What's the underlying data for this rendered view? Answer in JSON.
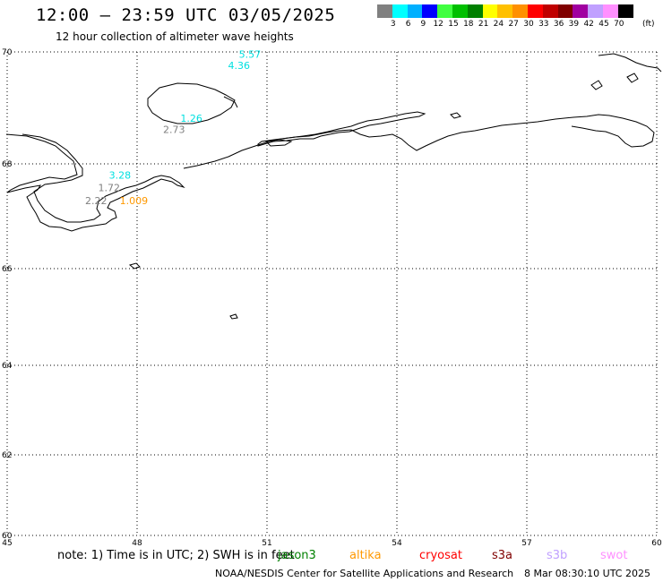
{
  "header": {
    "title": "12:00 — 23:59 UTC 03/05/2025",
    "subtitle": "12 hour collection of altimeter wave heights"
  },
  "legend": {
    "colors": [
      "#808080",
      "#00ffff",
      "#00b0ff",
      "#0000ff",
      "#40ff40",
      "#00c000",
      "#008000",
      "#ffff00",
      "#ffc000",
      "#ff9000",
      "#ff0000",
      "#c00000",
      "#800000",
      "#a000a0",
      "#c0a0ff",
      "#ff90ff",
      "#000000"
    ],
    "labels": [
      "3",
      "6",
      "9",
      "12",
      "15",
      "18",
      "21",
      "24",
      "27",
      "30",
      "33",
      "36",
      "39",
      "42",
      "45",
      "70"
    ],
    "unit": "(ft)"
  },
  "map": {
    "lon_ticks": [
      "45",
      "48",
      "51",
      "54",
      "57",
      "60"
    ],
    "lat_ticks": [
      "70",
      "68",
      "66",
      "64",
      "62",
      "60"
    ],
    "wave_labels": [
      {
        "text": "5.57",
        "color": "#00e0e0",
        "lon": 50.35,
        "lat": 69.9
      },
      {
        "text": "4.36",
        "color": "#00e0e0",
        "lon": 50.1,
        "lat": 69.7
      },
      {
        "text": "1.26",
        "color": "#00e0e0",
        "lon": 49.0,
        "lat": 68.75
      },
      {
        "text": "2.73",
        "color": "#808080",
        "lon": 48.6,
        "lat": 68.55
      },
      {
        "text": "3.28",
        "color": "#00e0e0",
        "lon": 47.35,
        "lat": 67.72
      },
      {
        "text": "1.72",
        "color": "#808080",
        "lon": 47.1,
        "lat": 67.48
      },
      {
        "text": "2.22",
        "color": "#808080",
        "lon": 46.8,
        "lat": 67.23
      },
      {
        "text": "1.009",
        "color": "#ff9900",
        "lon": 47.6,
        "lat": 67.23
      }
    ]
  },
  "footer": {
    "note": "note: 1) Time is in UTC; 2) SWH is in feet",
    "missions": [
      {
        "name": "jason3",
        "color": "#008000"
      },
      {
        "name": "altika",
        "color": "#ff9900"
      },
      {
        "name": "cryosat",
        "color": "#ff0000"
      },
      {
        "name": "s3a",
        "color": "#800000"
      },
      {
        "name": "s3b",
        "color": "#c0a0ff"
      },
      {
        "name": "swot",
        "color": "#ff90ff"
      }
    ],
    "credit": "NOAA/NESDIS Center for Satellite Applications and Research",
    "timestamp": "8 Mar 08:30:10 UTC 2025"
  }
}
